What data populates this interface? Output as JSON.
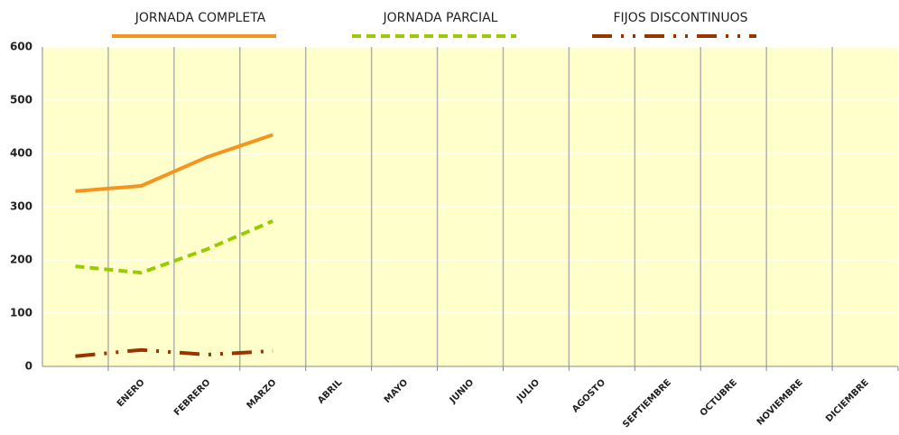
{
  "chart_data": {
    "type": "line",
    "categories": [
      null,
      "ENERO",
      "FEBRERO",
      "MARZO",
      "ABRIL",
      "MAYO",
      "JUNIO",
      "JULIO",
      "AGOSTO",
      "SEPTIEMBRE",
      "OCTUBRE",
      "NOVIEMBRE",
      "DICIEMBRE"
    ],
    "series": [
      {
        "name": "JORNADA COMPLETA",
        "color": "#f7941d",
        "dash": "solid",
        "values": [
          329,
          339,
          393,
          435,
          null,
          null,
          null,
          null,
          null,
          null,
          null,
          null,
          null
        ]
      },
      {
        "name": "JORNADA PARCIAL",
        "color": "#99cc00",
        "dash": "dashed",
        "values": [
          188,
          176,
          220,
          273,
          null,
          null,
          null,
          null,
          null,
          null,
          null,
          null,
          null
        ]
      },
      {
        "name": "FIJOS DISCONTINUOS",
        "color": "#993300",
        "dash": "dashdot",
        "values": [
          19,
          31,
          22,
          29,
          null,
          null,
          null,
          null,
          null,
          null,
          null,
          null,
          null
        ]
      }
    ],
    "ylim": [
      0,
      600
    ],
    "yticks": [
      0,
      100,
      200,
      300,
      400,
      500,
      600
    ],
    "grid": true,
    "legend": "top"
  }
}
